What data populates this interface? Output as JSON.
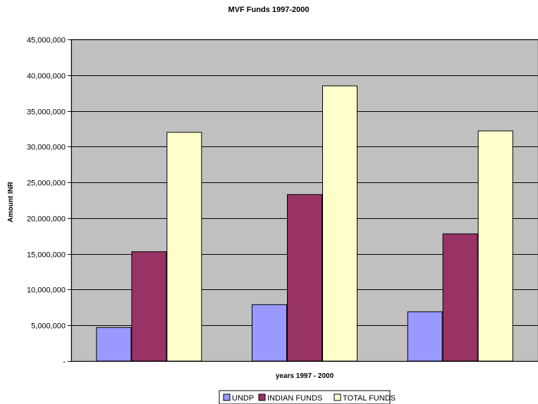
{
  "chart_data": {
    "type": "bar",
    "title": "MVF Funds 1997-2000",
    "xlabel": "years 1997 - 2000",
    "ylabel": "Amount INR",
    "categories": [
      "",
      "",
      ""
    ],
    "series": [
      {
        "name": "UNDP",
        "color": "#9999ff",
        "values": [
          4700000,
          7900000,
          6900000
        ]
      },
      {
        "name": "INDIAN FUNDS",
        "color": "#993366",
        "values": [
          15300000,
          23300000,
          17800000
        ]
      },
      {
        "name": "TOTAL FUNDS",
        "color": "#ffffcc",
        "values": [
          32000000,
          38500000,
          32200000
        ]
      }
    ],
    "ylim": [
      0,
      45000000
    ],
    "yticks": [
      0,
      5000000,
      10000000,
      15000000,
      20000000,
      25000000,
      30000000,
      35000000,
      40000000,
      45000000
    ],
    "ytick_labels": [
      "-",
      "5,000,000",
      "10,000,000",
      "15,000,000",
      "20,000,000",
      "25,000,000",
      "30,000,000",
      "35,000,000",
      "40,000,000",
      "45,000,000"
    ],
    "grid": true,
    "plot_background": "#c0c0c0",
    "legend_position": "bottom"
  }
}
